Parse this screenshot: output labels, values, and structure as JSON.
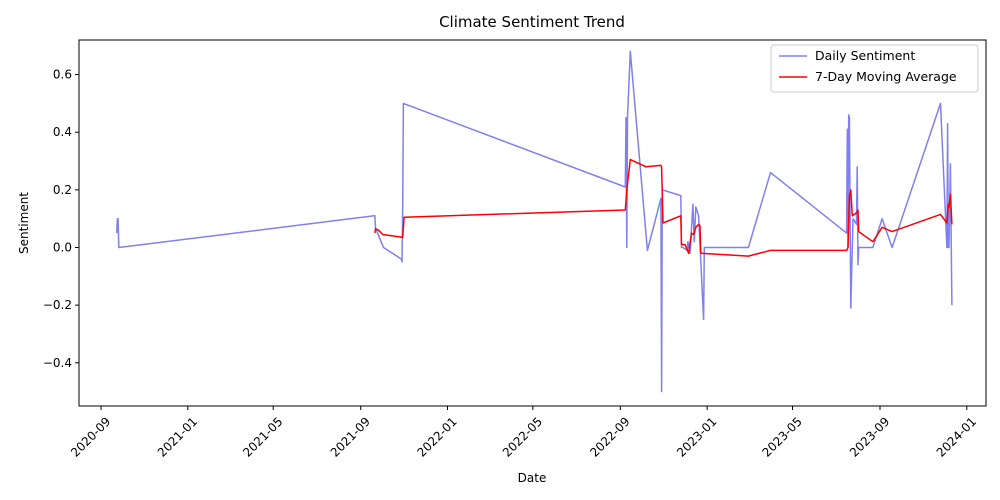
{
  "chart_data": {
    "type": "line",
    "title": "Climate Sentiment Trend",
    "xlabel": "Date",
    "ylabel": "Sentiment",
    "x_ticks": [
      "2020-09",
      "2021-01",
      "2021-05",
      "2021-09",
      "2022-01",
      "2022-05",
      "2022-09",
      "2023-01",
      "2023-05",
      "2023-09",
      "2024-01"
    ],
    "x_tick_dates": [
      "2020-09-01",
      "2021-01-01",
      "2021-05-01",
      "2021-09-01",
      "2022-01-01",
      "2022-05-01",
      "2022-09-01",
      "2023-01-01",
      "2023-05-01",
      "2023-09-01",
      "2024-01-01"
    ],
    "y_ticks": [
      "−0.4",
      "−0.2",
      "0.0",
      "0.2",
      "0.4",
      "0.6"
    ],
    "y_tick_values": [
      -0.4,
      -0.2,
      0.0,
      0.2,
      0.4,
      0.6
    ],
    "xlim": [
      "2020-08-01",
      "2024-01-28"
    ],
    "ylim": [
      -0.55,
      0.72
    ],
    "legend_position": "top-right",
    "series": [
      {
        "name": "Daily Sentiment",
        "color": "#8080f0",
        "points": [
          [
            "2020-09-23",
            0.05
          ],
          [
            "2020-09-24",
            0.1
          ],
          [
            "2020-09-25",
            0.1
          ],
          [
            "2020-09-26",
            0.0
          ],
          [
            "2021-09-20",
            0.11
          ],
          [
            "2021-09-21",
            0.11
          ],
          [
            "2021-09-22",
            0.06
          ],
          [
            "2021-09-23",
            0.06
          ],
          [
            "2021-10-03",
            0.0
          ],
          [
            "2021-10-28",
            -0.04
          ],
          [
            "2021-10-29",
            -0.05
          ],
          [
            "2021-10-30",
            0.14
          ],
          [
            "2021-10-31",
            0.5
          ],
          [
            "2022-09-08",
            0.21
          ],
          [
            "2022-09-09",
            0.45
          ],
          [
            "2022-09-10",
            0.0
          ],
          [
            "2022-09-11",
            0.45
          ],
          [
            "2022-09-15",
            0.68
          ],
          [
            "2022-10-09",
            -0.01
          ],
          [
            "2022-10-28",
            0.17
          ],
          [
            "2022-10-29",
            -0.5
          ],
          [
            "2022-10-30",
            0.2
          ],
          [
            "2022-11-25",
            0.18
          ],
          [
            "2022-11-26",
            0.0
          ],
          [
            "2022-11-28",
            0.0
          ],
          [
            "2022-12-04",
            -0.01
          ],
          [
            "2022-12-05",
            0.02
          ],
          [
            "2022-12-08",
            -0.02
          ],
          [
            "2022-12-12",
            0.15
          ],
          [
            "2022-12-14",
            0.02
          ],
          [
            "2022-12-16",
            0.14
          ],
          [
            "2022-12-20",
            0.11
          ],
          [
            "2022-12-27",
            -0.25
          ],
          [
            "2022-12-28",
            0.0
          ],
          [
            "2023-02-28",
            0.0
          ],
          [
            "2023-03-31",
            0.26
          ],
          [
            "2023-07-16",
            0.05
          ],
          [
            "2023-07-17",
            0.41
          ],
          [
            "2023-07-18",
            0.0
          ],
          [
            "2023-07-19",
            0.46
          ],
          [
            "2023-07-20",
            0.45
          ],
          [
            "2023-07-22",
            -0.21
          ],
          [
            "2023-07-25",
            0.1
          ],
          [
            "2023-07-30",
            0.08
          ],
          [
            "2023-07-31",
            0.28
          ],
          [
            "2023-08-01",
            -0.06
          ],
          [
            "2023-08-02",
            0.0
          ],
          [
            "2023-08-22",
            0.0
          ],
          [
            "2023-09-04",
            0.1
          ],
          [
            "2023-09-18",
            0.0
          ],
          [
            "2023-11-25",
            0.5
          ],
          [
            "2023-12-04",
            0.0
          ],
          [
            "2023-12-05",
            0.43
          ],
          [
            "2023-12-06",
            0.0
          ],
          [
            "2023-12-07",
            0.0
          ],
          [
            "2023-12-09",
            0.29
          ],
          [
            "2023-12-11",
            -0.2
          ]
        ]
      },
      {
        "name": "7-Day Moving Average",
        "color": "#ff0000",
        "points": [
          [
            "2021-09-21",
            0.05
          ],
          [
            "2021-09-22",
            0.065
          ],
          [
            "2021-09-26",
            0.06
          ],
          [
            "2021-10-02",
            0.045
          ],
          [
            "2021-10-30",
            0.035
          ],
          [
            "2021-11-01",
            0.105
          ],
          [
            "2022-09-08",
            0.13
          ],
          [
            "2022-09-10",
            0.2
          ],
          [
            "2022-09-15",
            0.305
          ],
          [
            "2022-10-07",
            0.28
          ],
          [
            "2022-10-28",
            0.285
          ],
          [
            "2022-10-29",
            0.28
          ],
          [
            "2022-10-31",
            0.085
          ],
          [
            "2022-11-25",
            0.11
          ],
          [
            "2022-11-26",
            0.01
          ],
          [
            "2022-12-01",
            0.01
          ],
          [
            "2022-12-06",
            -0.02
          ],
          [
            "2022-12-10",
            0.05
          ],
          [
            "2022-12-13",
            0.045
          ],
          [
            "2022-12-16",
            0.07
          ],
          [
            "2022-12-20",
            0.08
          ],
          [
            "2022-12-22",
            0.075
          ],
          [
            "2022-12-23",
            -0.02
          ],
          [
            "2023-02-28",
            -0.03
          ],
          [
            "2023-03-31",
            -0.01
          ],
          [
            "2023-07-16",
            -0.01
          ],
          [
            "2023-07-18",
            0.0
          ],
          [
            "2023-07-20",
            0.18
          ],
          [
            "2023-07-22",
            0.2
          ],
          [
            "2023-07-24",
            0.11
          ],
          [
            "2023-07-30",
            0.12
          ],
          [
            "2023-08-01",
            0.13
          ],
          [
            "2023-08-02",
            0.055
          ],
          [
            "2023-08-22",
            0.02
          ],
          [
            "2023-09-04",
            0.07
          ],
          [
            "2023-09-18",
            0.055
          ],
          [
            "2023-11-25",
            0.115
          ],
          [
            "2023-12-04",
            0.085
          ],
          [
            "2023-12-06",
            0.15
          ],
          [
            "2023-12-07",
            0.14
          ],
          [
            "2023-12-09",
            0.185
          ],
          [
            "2023-12-11",
            0.08
          ]
        ]
      }
    ]
  }
}
